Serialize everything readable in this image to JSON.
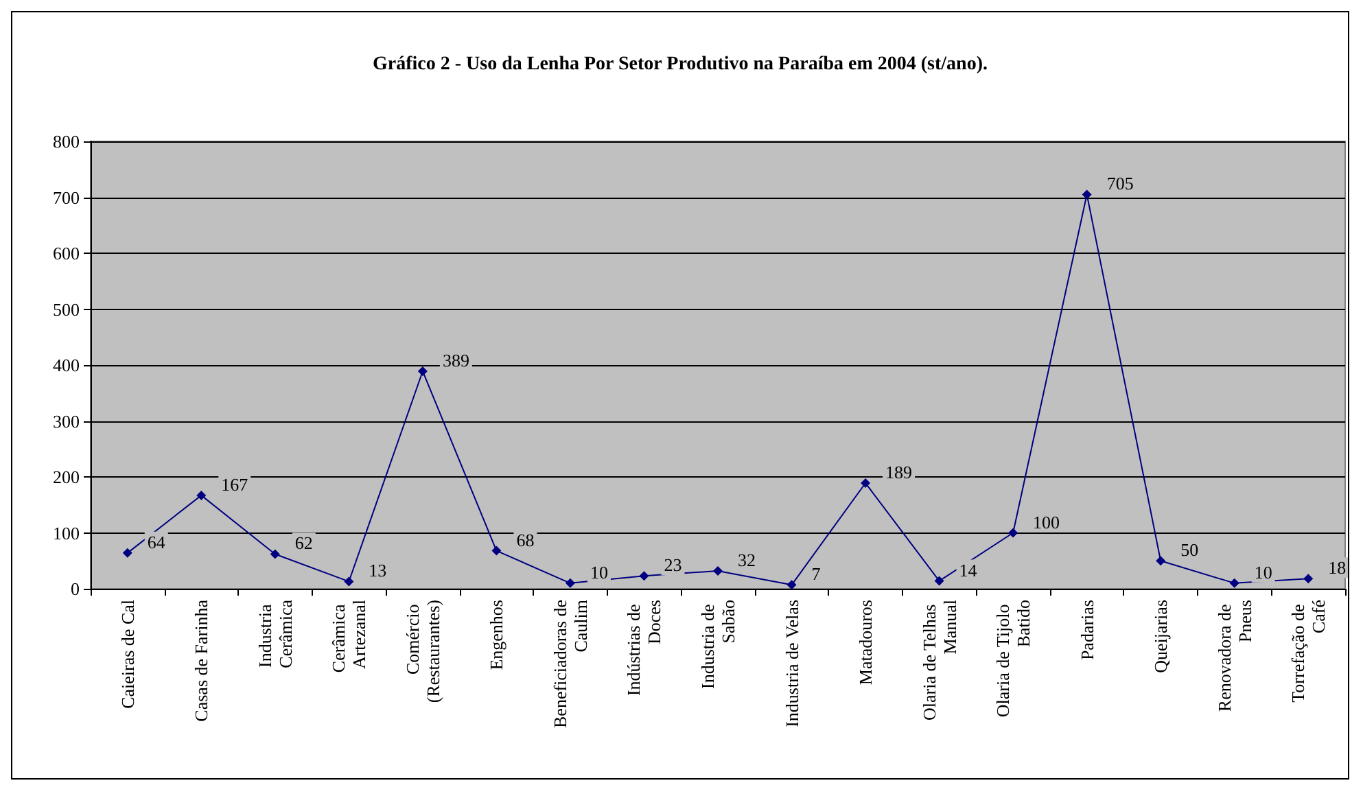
{
  "chart_data": {
    "type": "line",
    "title": "Gráfico 2 - Uso da Lenha Por Setor Produtivo na Paraíba em 2004 (st/ano).",
    "categories": [
      "Caieiras de Cal",
      "Casas de Farinha",
      "Industria Cerâmica",
      "Cerâmica Artezanal",
      "Comércio (Restaurantes)",
      "Engenhos",
      "Beneficiadoras de Caulim",
      "Indústrias de Doces",
      "Industria de Sabão",
      "Industria de Velas",
      "Matadouros",
      "Olaria de Telhas Manual",
      "Olaria de Tijolo Batido",
      "Padarias",
      "Queijarias",
      "Renovadora de Pneus",
      "Torrefação de Café"
    ],
    "series": [
      {
        "color": "#000080",
        "values": [
          64,
          167,
          62,
          13,
          389,
          68,
          10,
          23,
          32,
          7,
          189,
          14,
          100,
          705,
          50,
          10,
          18
        ]
      }
    ],
    "ylim": [
      0,
      800
    ],
    "yticks": [
      0,
      100,
      200,
      300,
      400,
      500,
      600,
      700,
      800
    ],
    "grid": "y",
    "marker": "diamond",
    "line_style": "solid",
    "data_labels": true
  }
}
